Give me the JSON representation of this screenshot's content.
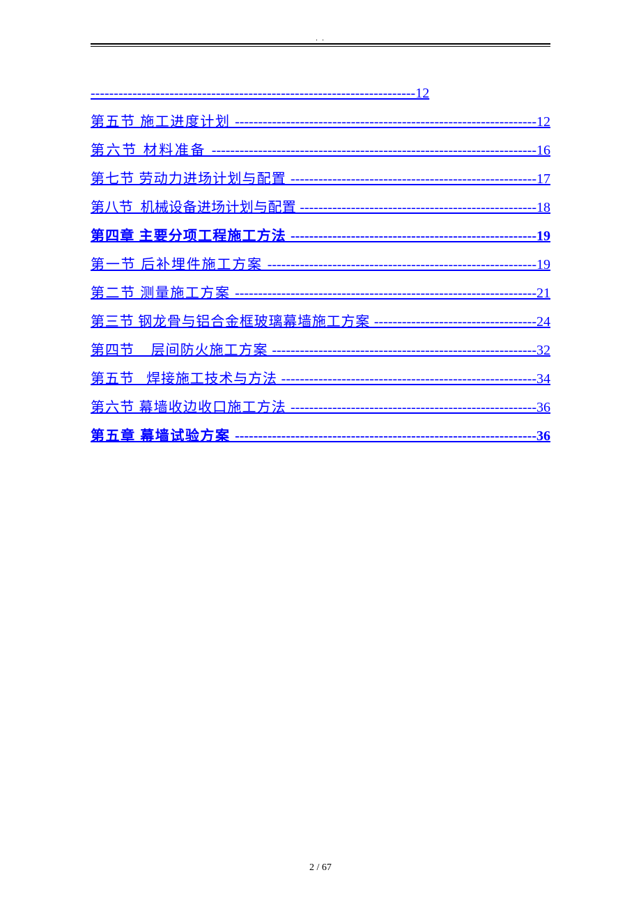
{
  "header_mark": ". .",
  "footer": "2 / 67",
  "link_color": "#0000ff",
  "font_family": "SimSun",
  "entries": [
    {
      "text": "----------------------------------------------------------------------12",
      "bold": false
    },
    {
      "text": "第五节 施工进度计划 -----------------------------------------------------------------12",
      "bold": false
    },
    {
      "text": "第六节 材料准备 ----------------------------------------------------------------------16",
      "bold": false
    },
    {
      "text": "第七节 劳动力进场计划与配置 -----------------------------------------------------17",
      "bold": false
    },
    {
      "text": "第八节  机械设备进场计划与配置 ---------------------------------------------------18",
      "bold": false
    },
    {
      "text": "第四章 主要分项工程施工方法 -----------------------------------------------------19",
      "bold": true
    },
    {
      "text": "第一节 后补埋件施工方案 ----------------------------------------------------------19",
      "bold": false
    },
    {
      "text": "第二节 测量施工方案 -----------------------------------------------------------------21",
      "bold": false
    },
    {
      "text": "第三节 钢龙骨与铝合金框玻璃幕墙施工方案 -----------------------------------24",
      "bold": false
    },
    {
      "text": "第四节    层间防火施工方案 ---------------------------------------------------------32",
      "bold": false
    },
    {
      "text": "第五节   焊接施工技术与方法 -------------------------------------------------------34",
      "bold": false
    },
    {
      "text": "第六节 幕墙收边收口施工方法 -----------------------------------------------------36",
      "bold": false
    },
    {
      "text": "第五章 幕墙试验方案 -----------------------------------------------------------------36",
      "bold": true
    }
  ]
}
